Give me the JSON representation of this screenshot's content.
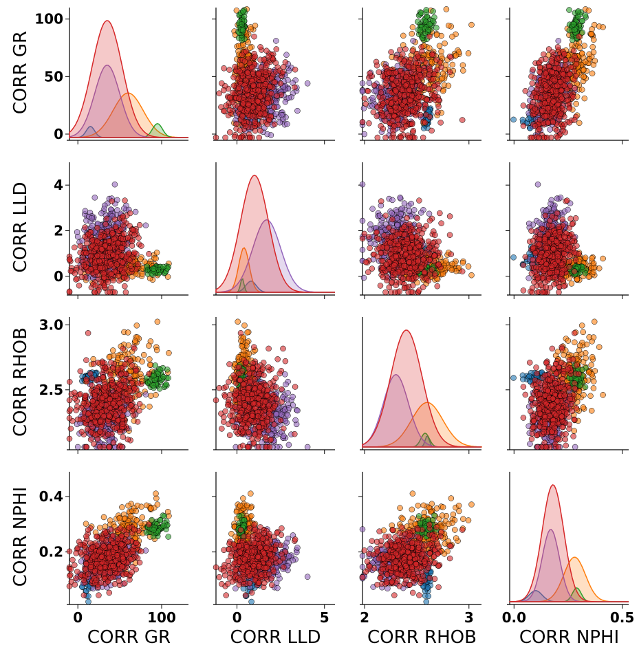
{
  "chart_data": {
    "type": "scatter",
    "subtype": "pairplot",
    "variables": [
      "CORR GR",
      "CORR LLD",
      "CORR RHOB",
      "CORR NPHI"
    ],
    "axis_ranges": {
      "CORR GR": [
        -10,
        132
      ],
      "CORR LLD": [
        -1.2,
        5.6
      ],
      "CORR RHOB": [
        1.98,
        3.12
      ],
      "CORR NPHI": [
        -0.02,
        0.53
      ]
    },
    "row_ranges": {
      "CORR GR": [
        -3,
        110
      ],
      "CORR LLD": [
        -0.7,
        5.0
      ],
      "CORR RHOB": [
        2.06,
        3.06
      ],
      "CORR NPHI": [
        0.02,
        0.49
      ]
    },
    "ticks": {
      "CORR GR": [
        0,
        50,
        100
      ],
      "CORR GR_x": [
        0,
        100
      ],
      "CORR LLD": [
        0,
        2,
        4
      ],
      "CORR LLD_x": [
        0,
        5
      ],
      "CORR RHOB": [
        2.5,
        3.0
      ],
      "CORR RHOB_x": [
        2,
        3
      ],
      "CORR NPHI": [
        0.2,
        0.4
      ],
      "CORR NPHI_x": [
        0.0,
        0.5
      ]
    },
    "tick_labels": {
      "CORR GR": [
        "0",
        "50",
        "100"
      ],
      "CORR GR_x": [
        "0",
        "100"
      ],
      "CORR LLD": [
        "0",
        "2",
        "4"
      ],
      "CORR LLD_x": [
        "0",
        "5"
      ],
      "CORR RHOB": [
        "2.5",
        "3.0"
      ],
      "CORR RHOB_x": [
        "2",
        "3"
      ],
      "CORR NPHI": [
        "0.2",
        "0.4"
      ],
      "CORR NPHI_x": [
        "0.0",
        "0.5"
      ]
    },
    "series": [
      {
        "color": "#1f77b4",
        "gr": [
          15,
          5
        ],
        "lld": [
          0.8,
          0.3
        ],
        "rhob": [
          2.6,
          0.02
        ],
        "nphi": [
          0.1,
          0.03
        ],
        "n": 40
      },
      {
        "color": "#ff7f0e",
        "gr": [
          60,
          18
        ],
        "lld": [
          0.4,
          0.3
        ],
        "rhob": [
          2.6,
          0.15
        ],
        "nphi": [
          0.28,
          0.05
        ],
        "n": 160
      },
      {
        "color": "#2ca02c",
        "gr": [
          95,
          6
        ],
        "lld": [
          0.3,
          0.1
        ],
        "rhob": [
          2.58,
          0.04
        ],
        "nphi": [
          0.29,
          0.02
        ],
        "n": 50
      },
      {
        "color": "#9467bd",
        "gr": [
          35,
          15
        ],
        "lld": [
          1.7,
          0.8
        ],
        "rhob": [
          2.3,
          0.12
        ],
        "nphi": [
          0.17,
          0.04
        ],
        "n": 260
      },
      {
        "color": "#d62728",
        "gr": [
          35,
          18
        ],
        "lld": [
          1.0,
          0.8
        ],
        "rhob": [
          2.4,
          0.15
        ],
        "nphi": [
          0.18,
          0.05
        ],
        "n": 420
      }
    ],
    "kde_diagonal": true,
    "grid": false,
    "legend": "none"
  }
}
